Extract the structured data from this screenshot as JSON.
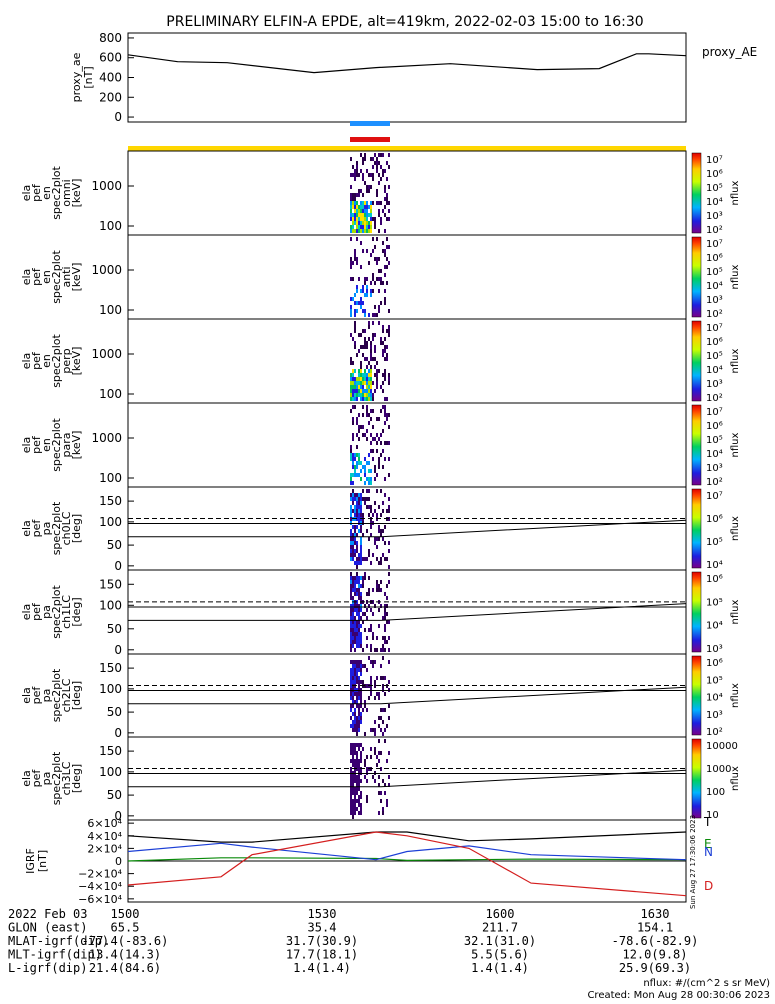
{
  "title": "PRELIMINARY ELFIN-A EPDE, alt=419km, 2022-02-03 15:00 to 16:30",
  "chart_data": [
    {
      "type": "line",
      "name": "proxy_ae",
      "ylabel": [
        "proxy_ae",
        "[nT]"
      ],
      "legend": "proxy_AE",
      "ylim": [
        -50,
        850
      ],
      "yticks": [
        "800",
        "600",
        "400",
        "200",
        "0"
      ],
      "x_minutes": [
        0,
        8,
        16,
        30,
        40,
        52,
        66,
        76,
        82,
        84,
        90
      ],
      "y": [
        630,
        560,
        550,
        450,
        500,
        540,
        480,
        490,
        640,
        640,
        620
      ]
    },
    {
      "type": "heatmap",
      "name": "ela_pef_en_spec2plot_omni",
      "ylabel": [
        "ela",
        "pef",
        "en",
        "spec2plot",
        "omni",
        "[keV]"
      ],
      "yticks": [
        "1000",
        "100"
      ],
      "colorbar_label": "nflux",
      "colorbar_ticks": [
        "10⁷",
        "10⁶",
        "10⁵",
        "10⁴",
        "10³",
        "10²"
      ]
    },
    {
      "type": "heatmap",
      "name": "ela_pef_en_spec2plot_anti",
      "ylabel": [
        "ela",
        "pef",
        "en",
        "spec2plot",
        "anti",
        "[keV]"
      ],
      "yticks": [
        "1000",
        "100"
      ],
      "colorbar_label": "nflux",
      "colorbar_ticks": [
        "10⁷",
        "10⁶",
        "10⁵",
        "10⁴",
        "10³",
        "10²"
      ]
    },
    {
      "type": "heatmap",
      "name": "ela_pef_en_spec2plot_perp",
      "ylabel": [
        "ela",
        "pef",
        "en",
        "spec2plot",
        "perp",
        "[keV]"
      ],
      "yticks": [
        "1000",
        "100"
      ],
      "colorbar_label": "nflux",
      "colorbar_ticks": [
        "10⁷",
        "10⁶",
        "10⁵",
        "10⁴",
        "10³",
        "10²"
      ]
    },
    {
      "type": "heatmap",
      "name": "ela_pef_en_spec2plot_para",
      "ylabel": [
        "ela",
        "pef",
        "en",
        "spec2plot",
        "para",
        "[keV]"
      ],
      "yticks": [
        "1000",
        "100"
      ],
      "colorbar_label": "nflux",
      "colorbar_ticks": [
        "10⁷",
        "10⁶",
        "10⁵",
        "10⁴",
        "10³",
        "10²"
      ]
    },
    {
      "type": "heatmap",
      "name": "ela_pef_pa_spec2plot_ch0LC",
      "ylabel": [
        "ela",
        "pef",
        "pa",
        "spec2plot",
        "ch0LC",
        "[deg]"
      ],
      "yticks": [
        "150",
        "100",
        "50",
        "0"
      ],
      "colorbar_label": "nflux",
      "colorbar_ticks": [
        "10⁷",
        "10⁶",
        "10⁵",
        "10⁴"
      ]
    },
    {
      "type": "heatmap",
      "name": "ela_pef_pa_spec2plot_ch1LC",
      "ylabel": [
        "ela",
        "pef",
        "pa",
        "spec2plot",
        "ch1LC",
        "[deg]"
      ],
      "yticks": [
        "150",
        "100",
        "50",
        "0"
      ],
      "colorbar_label": "nflux",
      "colorbar_ticks": [
        "10⁶",
        "10⁵",
        "10⁴",
        "10³"
      ]
    },
    {
      "type": "heatmap",
      "name": "ela_pef_pa_spec2plot_ch2LC",
      "ylabel": [
        "ela",
        "pef",
        "pa",
        "spec2plot",
        "ch2LC",
        "[deg]"
      ],
      "yticks": [
        "150",
        "100",
        "50",
        "0"
      ],
      "colorbar_label": "nflux",
      "colorbar_ticks": [
        "10⁶",
        "10⁵",
        "10⁴",
        "10³",
        "10²"
      ]
    },
    {
      "type": "heatmap",
      "name": "ela_pef_pa_spec2plot_ch3LC",
      "ylabel": [
        "ela",
        "pef",
        "pa",
        "spec2plot",
        "ch3LC",
        "[deg]"
      ],
      "yticks": [
        "150",
        "100",
        "50",
        "0"
      ],
      "colorbar_label": "nflux",
      "colorbar_ticks": [
        "10000",
        "1000",
        "100",
        "10"
      ]
    },
    {
      "type": "line",
      "name": "IGRF",
      "ylabel": [
        "IGRF",
        "[nT]"
      ],
      "ylim": [
        -65000,
        65000
      ],
      "yticks": [
        "6×10⁴",
        "4×10⁴",
        "2×10⁴",
        "0",
        "−2×10⁴",
        "−4×10⁴",
        "−6×10⁴"
      ],
      "legend": [
        "T",
        "E",
        "N",
        "D"
      ],
      "stamp": "Sun Aug 27 17:30:06 2023",
      "x_minutes": [
        0,
        15,
        20,
        40,
        45,
        55,
        65,
        90
      ],
      "series": [
        {
          "name": "T",
          "color": "#000000",
          "y": [
            40000,
            30000,
            30000,
            46000,
            46000,
            32000,
            35000,
            46000
          ]
        },
        {
          "name": "E",
          "color": "#0a8a0a",
          "y": [
            0,
            5000,
            5000,
            4000,
            1000,
            2000,
            3000,
            2000
          ]
        },
        {
          "name": "N",
          "color": "#1c3fd6",
          "y": [
            15000,
            28000,
            22000,
            2000,
            15000,
            24000,
            10000,
            2000
          ]
        },
        {
          "name": "D",
          "color": "#d41e1e",
          "y": [
            -38000,
            -25000,
            10000,
            46000,
            40000,
            20000,
            -35000,
            -55000
          ]
        }
      ]
    }
  ],
  "x_axis": {
    "rows": [
      {
        "label": "2022 Feb 03",
        "values": [
          "1500",
          "1530",
          "1600",
          "1630"
        ]
      },
      {
        "label": "GLON (east)",
        "values": [
          "65.5",
          "35.4",
          "211.7",
          "154.1"
        ]
      },
      {
        "label": "MLAT-igrf(dip)",
        "values": [
          "-77.4(-83.6)",
          "31.7(30.9)",
          "32.1(31.0)",
          "-78.6(-82.9)"
        ]
      },
      {
        "label": "MLT-igrf(dip)",
        "values": [
          "13.4(14.3)",
          "17.7(18.1)",
          "5.5(5.6)",
          "12.0(9.8)"
        ]
      },
      {
        "label": "L-igrf(dip)",
        "values": [
          "21.4(84.6)",
          "1.4(1.4)",
          "1.4(1.4)",
          "25.9(69.3)"
        ]
      }
    ]
  },
  "footer": {
    "units": "nflux: #/(cm^2 s sr MeV)",
    "created": "Created: Mon Aug 28 00:30:06 2023"
  },
  "bars": {
    "blue": "#1e90ff",
    "red": "#e01010",
    "yellow": "#ffd700"
  }
}
